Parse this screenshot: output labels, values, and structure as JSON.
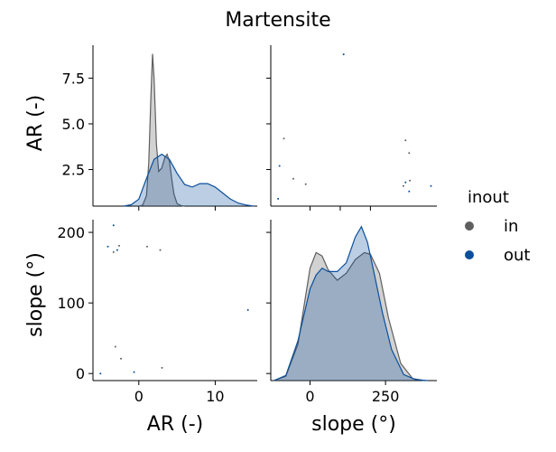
{
  "chart_data": {
    "type": "pairplot",
    "title": "Martensite",
    "variables": [
      {
        "key": "AR",
        "label": "AR (-)",
        "ticks": [
          2.5,
          5.0,
          7.5
        ],
        "tick_labels": [
          "2.5",
          "5.0",
          "7.5"
        ],
        "lim": [
          0.5,
          9.3
        ]
      },
      {
        "key": "slope",
        "label": "slope (°)",
        "ticks": [
          0,
          100,
          200
        ],
        "tick_labels": [
          "0",
          "100",
          "200"
        ],
        "lim": [
          -10,
          218
        ]
      }
    ],
    "diag_axes": {
      "AR": {
        "ticks": [
          0,
          10
        ],
        "tick_labels": [
          "0",
          "10"
        ],
        "lim": [
          -6,
          15.5
        ]
      },
      "slope": {
        "ticks": [
          0,
          250
        ],
        "tick_labels": [
          "0",
          "250"
        ],
        "lim": [
          -130,
          420
        ]
      }
    },
    "legend": {
      "title": "inout",
      "placement": "right",
      "entries": [
        {
          "name": "in",
          "color": "#5f5f5f"
        },
        {
          "name": "out",
          "color": "#0b4f9c"
        }
      ]
    },
    "series": [
      {
        "name": "in",
        "color": "#5f5f5f",
        "points": [
          {
            "AR": 1.7,
            "slope": 38
          },
          {
            "AR": 2.0,
            "slope": 21
          },
          {
            "AR": 1.6,
            "slope": 172
          },
          {
            "AR": 1.9,
            "slope": 181
          },
          {
            "AR": 3.4,
            "slope": 180
          },
          {
            "AR": 4.1,
            "slope": 175
          },
          {
            "AR": 4.2,
            "slope": 8
          }
        ]
      },
      {
        "name": "out",
        "color": "#0b4f9c",
        "points": [
          {
            "AR": 0.9,
            "slope": 0
          },
          {
            "AR": 2.7,
            "slope": 2
          },
          {
            "AR": 1.3,
            "slope": 180
          },
          {
            "AR": 1.8,
            "slope": 175
          },
          {
            "AR": 8.8,
            "slope": 90
          },
          {
            "AR": 1.6,
            "slope": 210
          }
        ]
      }
    ],
    "kde": {
      "AR": {
        "in": {
          "x": [
            0.0,
            0.5,
            1.0,
            1.3,
            1.6,
            1.8,
            2.0,
            2.3,
            2.6,
            3.0,
            3.4,
            3.7,
            4.0,
            4.3,
            4.6,
            5.0,
            5.5,
            6.0
          ],
          "y": [
            0.0,
            0.05,
            0.6,
            2.5,
            6.5,
            8.8,
            7.4,
            3.6,
            2.0,
            2.2,
            2.8,
            3.0,
            2.6,
            1.6,
            0.7,
            0.15,
            0.03,
            0.0
          ]
        },
        "out": {
          "x": [
            -2.0,
            -1.0,
            0.0,
            1.0,
            2.0,
            3.0,
            4.0,
            5.0,
            6.0,
            7.0,
            8.0,
            9.0,
            10.0,
            11.0,
            12.0,
            13.0,
            14.0,
            15.0
          ],
          "y": [
            0.0,
            0.08,
            0.4,
            1.6,
            2.7,
            3.0,
            2.7,
            1.9,
            1.25,
            1.1,
            1.3,
            1.3,
            1.1,
            0.75,
            0.4,
            0.18,
            0.07,
            0.0
          ]
        },
        "ylim": [
          0,
          9.3
        ]
      },
      "slope": {
        "in": {
          "x": [
            -120,
            -80,
            -40,
            0,
            20,
            40,
            60,
            90,
            120,
            150,
            180,
            200,
            230,
            260,
            300,
            340,
            380
          ],
          "y": [
            0.0,
            0.25,
            2.1,
            6.5,
            7.4,
            7.2,
            6.4,
            5.8,
            6.2,
            7.0,
            7.4,
            7.3,
            6.2,
            3.6,
            1.0,
            0.12,
            0.0
          ]
        },
        "out": {
          "x": [
            -120,
            -80,
            -40,
            0,
            20,
            40,
            60,
            90,
            120,
            150,
            170,
            190,
            210,
            240,
            270,
            310,
            350,
            390
          ],
          "y": [
            0.0,
            0.3,
            2.3,
            5.3,
            6.1,
            6.5,
            6.3,
            6.3,
            6.8,
            8.3,
            8.9,
            8.0,
            6.4,
            3.9,
            1.8,
            0.35,
            0.05,
            0.0
          ]
        },
        "ylim": [
          0,
          9.3
        ]
      }
    }
  }
}
